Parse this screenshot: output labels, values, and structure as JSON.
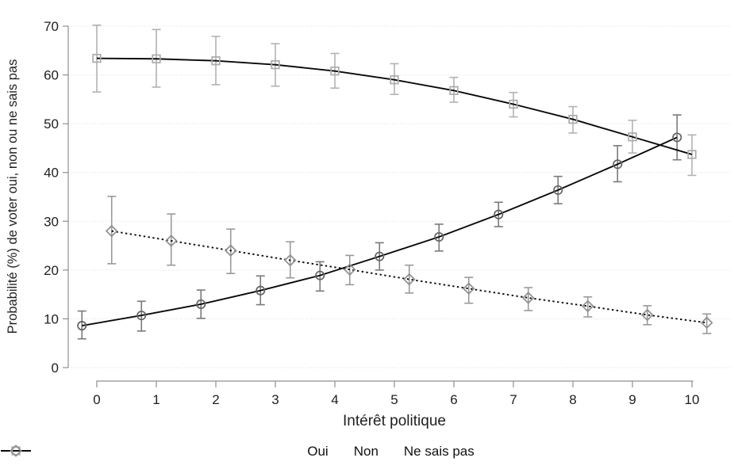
{
  "chart_data": {
    "type": "line",
    "title": "",
    "ylabel": "Probabilité (%) de voter oui, non ou ne sais pas",
    "xlabel": "Intérêt politique",
    "x": [
      0,
      1,
      2,
      3,
      4,
      5,
      6,
      7,
      8,
      9,
      10
    ],
    "xticks": [
      0,
      1,
      2,
      3,
      4,
      5,
      6,
      7,
      8,
      9,
      10
    ],
    "yticks": [
      0,
      10,
      20,
      30,
      40,
      50,
      60,
      70
    ],
    "ylim": [
      0,
      70
    ],
    "xlim": [
      -0.55,
      10.6
    ],
    "grid": "horizontal-dotted",
    "legend_position": "bottom-center",
    "colors": {
      "line": "#0a0a0a",
      "grid": "#d9d9d9",
      "axis": "#8f8f8f",
      "text": "#1f1f1f"
    },
    "series": [
      {
        "name": "Oui",
        "marker": "circle",
        "line_style": "solid",
        "x_offset": -0.25,
        "marker_color": "#636363",
        "error_color": "#7a7a7a",
        "values": [
          8.6,
          10.7,
          13.0,
          15.8,
          18.9,
          22.8,
          26.8,
          31.4,
          36.4,
          41.7,
          47.2
        ],
        "ci_low": [
          5.9,
          7.5,
          10.1,
          12.9,
          15.7,
          20.0,
          23.9,
          28.9,
          33.6,
          38.1,
          42.6
        ],
        "ci_high": [
          11.6,
          13.6,
          15.9,
          18.8,
          21.7,
          25.6,
          29.4,
          33.9,
          39.2,
          45.5,
          51.8
        ]
      },
      {
        "name": "Non",
        "marker": "square",
        "line_style": "solid",
        "x_offset": 0,
        "marker_color": "#ababab",
        "error_color": "#b2b2b2",
        "values": [
          63.4,
          63.3,
          62.9,
          62.1,
          60.8,
          59.0,
          56.8,
          54.0,
          50.9,
          47.3,
          43.7
        ],
        "ci_low": [
          56.5,
          57.5,
          58.0,
          57.7,
          57.3,
          56.0,
          54.4,
          51.4,
          48.1,
          44.0,
          39.4
        ],
        "ci_high": [
          70.2,
          69.3,
          67.9,
          66.4,
          64.4,
          62.3,
          59.5,
          56.4,
          53.5,
          50.7,
          47.7
        ]
      },
      {
        "name": "Ne sais pas",
        "marker": "diamond",
        "line_style": "dotted",
        "x_offset": 0.25,
        "marker_color": "#8f8f8f",
        "error_color": "#9a9a9a",
        "values": [
          28.0,
          26.0,
          24.0,
          22.0,
          20.1,
          18.1,
          16.2,
          14.3,
          12.6,
          10.8,
          9.2
        ],
        "ci_low": [
          21.3,
          21.0,
          19.3,
          18.4,
          17.0,
          15.3,
          13.2,
          11.7,
          10.4,
          8.8,
          7.0
        ],
        "ci_high": [
          35.1,
          31.5,
          28.4,
          25.8,
          23.0,
          21.0,
          18.5,
          16.4,
          14.5,
          12.7,
          11.0
        ]
      }
    ]
  }
}
